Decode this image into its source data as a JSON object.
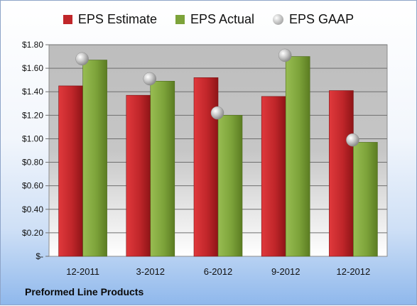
{
  "footer": {
    "company": "Preformed Line Products"
  },
  "colors": {
    "estimate": "#c0262a",
    "actual": "#7da33a",
    "gaap": "#b0b0b0"
  },
  "chart_data": {
    "type": "bar",
    "categories": [
      "12-2011",
      "3-2012",
      "6-2012",
      "9-2012",
      "12-2012"
    ],
    "series": [
      {
        "name": "EPS Estimate",
        "values": [
          1.45,
          1.37,
          1.52,
          1.36,
          1.41
        ]
      },
      {
        "name": "EPS Actual",
        "values": [
          1.67,
          1.49,
          1.2,
          1.7,
          0.97
        ]
      },
      {
        "name": "EPS GAAP",
        "values": [
          1.68,
          1.51,
          1.22,
          1.71,
          0.99
        ],
        "style": "marker"
      }
    ],
    "yticks": [
      "$-",
      "$0.20",
      "$0.40",
      "$0.60",
      "$0.80",
      "$1.00",
      "$1.20",
      "$1.40",
      "$1.60",
      "$1.80"
    ],
    "ylim": [
      0,
      1.8
    ],
    "grid": true,
    "legend": "top"
  }
}
